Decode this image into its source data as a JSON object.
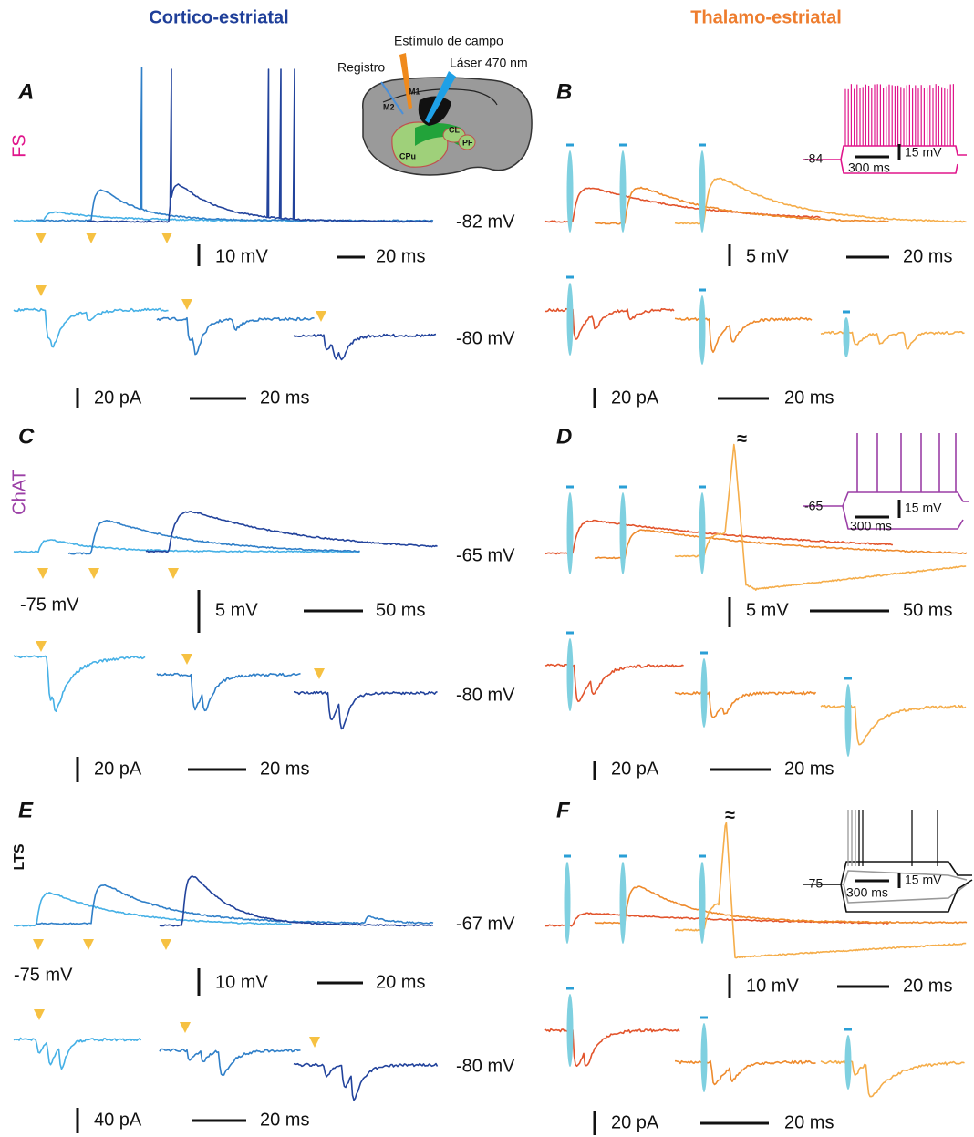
{
  "headers": {
    "left": "Cortico-estriatal",
    "right": "Thalamo-estriatal"
  },
  "diagram": {
    "stimulus": "Estímulo de campo",
    "recording": "Registro",
    "laser": "Láser 470 nm",
    "regions": [
      "M1",
      "M2",
      "CPu",
      "CL",
      "PF"
    ]
  },
  "cell_types": [
    "FS",
    "ChAT",
    "LTS"
  ],
  "panels": [
    {
      "letter": "A",
      "voltage": {
        "holding": "-82 mV",
        "scale_y": "10 mV",
        "scale_x": "20 ms"
      },
      "current": {
        "holding": "-80 mV",
        "scale_y": "20 pA",
        "scale_x": "20 ms"
      }
    },
    {
      "letter": "B",
      "voltage": {
        "scale_y": "5 mV",
        "scale_x": "20 ms"
      },
      "inset": {
        "rest": "-84",
        "scale_y": "15 mV",
        "scale_x": "300 ms"
      },
      "current": {
        "scale_y": "20 pA",
        "scale_x": "20 ms"
      }
    },
    {
      "letter": "C",
      "voltage": {
        "holding": "-65 mV",
        "baseline": "-75 mV",
        "scale_y": "5 mV",
        "scale_x": "50 ms"
      },
      "current": {
        "holding": "-80 mV",
        "scale_y": "20 pA",
        "scale_x": "20 ms"
      }
    },
    {
      "letter": "D",
      "voltage": {
        "break": "≈",
        "scale_y": "5 mV",
        "scale_x": "50 ms"
      },
      "inset": {
        "rest": "-65",
        "scale_y": "15 mV",
        "scale_x": "300 ms"
      },
      "current": {
        "scale_y": "20 pA",
        "scale_x": "20 ms"
      }
    },
    {
      "letter": "E",
      "voltage": {
        "holding": "-67 mV",
        "baseline": "-75 mV",
        "scale_y": "10 mV",
        "scale_x": "20 ms"
      },
      "current": {
        "holding": "-80 mV",
        "scale_y": "40 pA",
        "scale_x": "20 ms"
      }
    },
    {
      "letter": "F",
      "voltage": {
        "break": "≈",
        "scale_y": "10 mV",
        "scale_x": "20 ms"
      },
      "inset": {
        "rest": "-75",
        "scale_y": "15 mV",
        "scale_x": "300 ms"
      },
      "current": {
        "scale_y": "20 pA",
        "scale_x": "20 ms"
      }
    }
  ]
}
